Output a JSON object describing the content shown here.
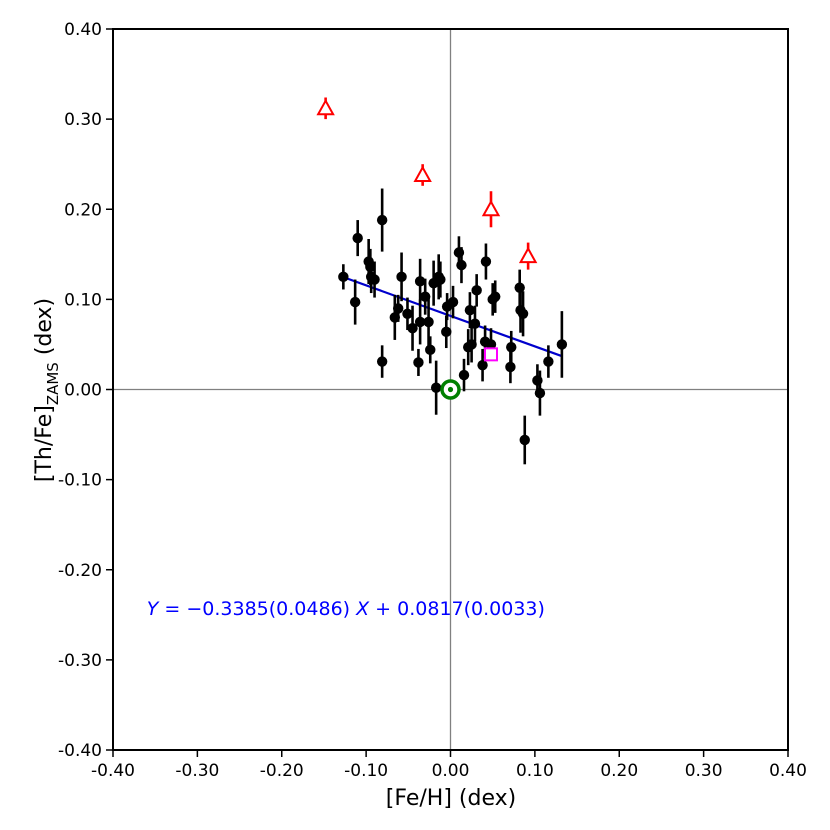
{
  "chart_data": {
    "type": "scatter",
    "title": "",
    "xlabel": "[Fe/H] (dex)",
    "ylabel_main": "[Th/Fe]",
    "ylabel_sub": "ZAMS",
    "ylabel_suffix": " (dex)",
    "xlim": [
      -0.4,
      0.4
    ],
    "ylim": [
      -0.4,
      0.4
    ],
    "xticks": [
      -0.4,
      -0.3,
      -0.2,
      -0.1,
      0.0,
      0.1,
      0.2,
      0.3,
      0.4
    ],
    "yticks": [
      -0.4,
      -0.3,
      -0.2,
      -0.1,
      0.0,
      0.1,
      0.2,
      0.3,
      0.4
    ],
    "xtick_labels": [
      "-0.40",
      "-0.30",
      "-0.20",
      "-0.10",
      "0.00",
      "0.10",
      "0.20",
      "0.30",
      "0.40"
    ],
    "ytick_labels": [
      "-0.40",
      "-0.30",
      "-0.20",
      "-0.10",
      "0.00",
      "0.10",
      "0.20",
      "0.30",
      "0.40"
    ],
    "grid": false,
    "reference_lines": {
      "x": 0.0,
      "y": 0.0,
      "color": "#808080"
    },
    "equation": {
      "Y": "Y",
      "eq": " = −0.3385(0.0486) ",
      "X": "X",
      "rest": " + 0.0817(0.0033)",
      "color": "#0000ff",
      "position_x": -0.36,
      "position_y": -0.25
    },
    "fit_line": {
      "slope": -0.3385,
      "intercept": 0.0817,
      "x_range": [
        -0.125,
        0.133
      ],
      "color": "#0000cc"
    },
    "series": [
      {
        "marker": "circle-filled",
        "color": "#000000",
        "points": [
          {
            "x": -0.127,
            "y": 0.125,
            "err": 0.014
          },
          {
            "x": -0.113,
            "y": 0.097,
            "err": 0.025
          },
          {
            "x": -0.11,
            "y": 0.168,
            "err": 0.02
          },
          {
            "x": -0.097,
            "y": 0.142,
            "err": 0.025
          },
          {
            "x": -0.095,
            "y": 0.136,
            "err": 0.02
          },
          {
            "x": -0.094,
            "y": 0.125,
            "err": 0.018
          },
          {
            "x": -0.09,
            "y": 0.122,
            "err": 0.02
          },
          {
            "x": -0.081,
            "y": 0.188,
            "err": 0.035
          },
          {
            "x": -0.081,
            "y": 0.031,
            "err": 0.018
          },
          {
            "x": -0.066,
            "y": 0.08,
            "err": 0.025
          },
          {
            "x": -0.062,
            "y": 0.09,
            "err": 0.015
          },
          {
            "x": -0.058,
            "y": 0.125,
            "err": 0.027
          },
          {
            "x": -0.051,
            "y": 0.084,
            "err": 0.018
          },
          {
            "x": -0.045,
            "y": 0.068,
            "err": 0.025
          },
          {
            "x": -0.038,
            "y": 0.03,
            "err": 0.015
          },
          {
            "x": -0.036,
            "y": 0.12,
            "err": 0.025
          },
          {
            "x": -0.036,
            "y": 0.075,
            "err": 0.025
          },
          {
            "x": -0.03,
            "y": 0.103,
            "err": 0.02
          },
          {
            "x": -0.026,
            "y": 0.075,
            "err": 0.03
          },
          {
            "x": -0.024,
            "y": 0.044,
            "err": 0.015
          },
          {
            "x": -0.02,
            "y": 0.118,
            "err": 0.025
          },
          {
            "x": -0.017,
            "y": 0.002,
            "err": 0.03
          },
          {
            "x": -0.014,
            "y": 0.125,
            "err": 0.025
          },
          {
            "x": -0.012,
            "y": 0.122,
            "err": 0.02
          },
          {
            "x": -0.005,
            "y": 0.064,
            "err": 0.018
          },
          {
            "x": -0.004,
            "y": 0.092,
            "err": 0.015
          },
          {
            "x": 0.003,
            "y": 0.097,
            "err": 0.018
          },
          {
            "x": 0.01,
            "y": 0.152,
            "err": 0.018
          },
          {
            "x": 0.013,
            "y": 0.138,
            "err": 0.02
          },
          {
            "x": 0.016,
            "y": 0.016,
            "err": 0.018
          },
          {
            "x": 0.021,
            "y": 0.047,
            "err": 0.02
          },
          {
            "x": 0.023,
            "y": 0.088,
            "err": 0.02
          },
          {
            "x": 0.025,
            "y": 0.05,
            "err": 0.02
          },
          {
            "x": 0.029,
            "y": 0.073,
            "err": 0.02
          },
          {
            "x": 0.031,
            "y": 0.11,
            "err": 0.018
          },
          {
            "x": 0.038,
            "y": 0.027,
            "err": 0.018
          },
          {
            "x": 0.041,
            "y": 0.053,
            "err": 0.018
          },
          {
            "x": 0.042,
            "y": 0.142,
            "err": 0.02
          },
          {
            "x": 0.048,
            "y": 0.05,
            "err": 0.018
          },
          {
            "x": 0.05,
            "y": 0.1,
            "err": 0.018
          },
          {
            "x": 0.053,
            "y": 0.103,
            "err": 0.018
          },
          {
            "x": 0.071,
            "y": 0.025,
            "err": 0.018
          },
          {
            "x": 0.072,
            "y": 0.047,
            "err": 0.018
          },
          {
            "x": 0.082,
            "y": 0.113,
            "err": 0.02
          },
          {
            "x": 0.083,
            "y": 0.088,
            "err": 0.025
          },
          {
            "x": 0.086,
            "y": 0.084,
            "err": 0.025
          },
          {
            "x": 0.088,
            "y": -0.056,
            "err": 0.027
          },
          {
            "x": 0.103,
            "y": 0.01,
            "err": 0.018
          },
          {
            "x": 0.106,
            "y": -0.004,
            "err": 0.025
          },
          {
            "x": 0.116,
            "y": 0.031,
            "err": 0.018
          },
          {
            "x": 0.132,
            "y": 0.05,
            "err": 0.037
          }
        ]
      },
      {
        "marker": "triangle-open",
        "color": "#ff0000",
        "points": [
          {
            "x": -0.148,
            "y": 0.312,
            "err": 0.012
          },
          {
            "x": -0.033,
            "y": 0.238,
            "err": 0.012
          },
          {
            "x": 0.048,
            "y": 0.2,
            "err": 0.02
          },
          {
            "x": 0.092,
            "y": 0.148,
            "err": 0.015
          }
        ]
      },
      {
        "marker": "square-open",
        "color": "#ff00ff",
        "points": [
          {
            "x": 0.048,
            "y": 0.039
          }
        ]
      },
      {
        "marker": "sun-symbol",
        "color": "#008000",
        "points": [
          {
            "x": 0.0,
            "y": 0.0
          }
        ]
      }
    ]
  }
}
